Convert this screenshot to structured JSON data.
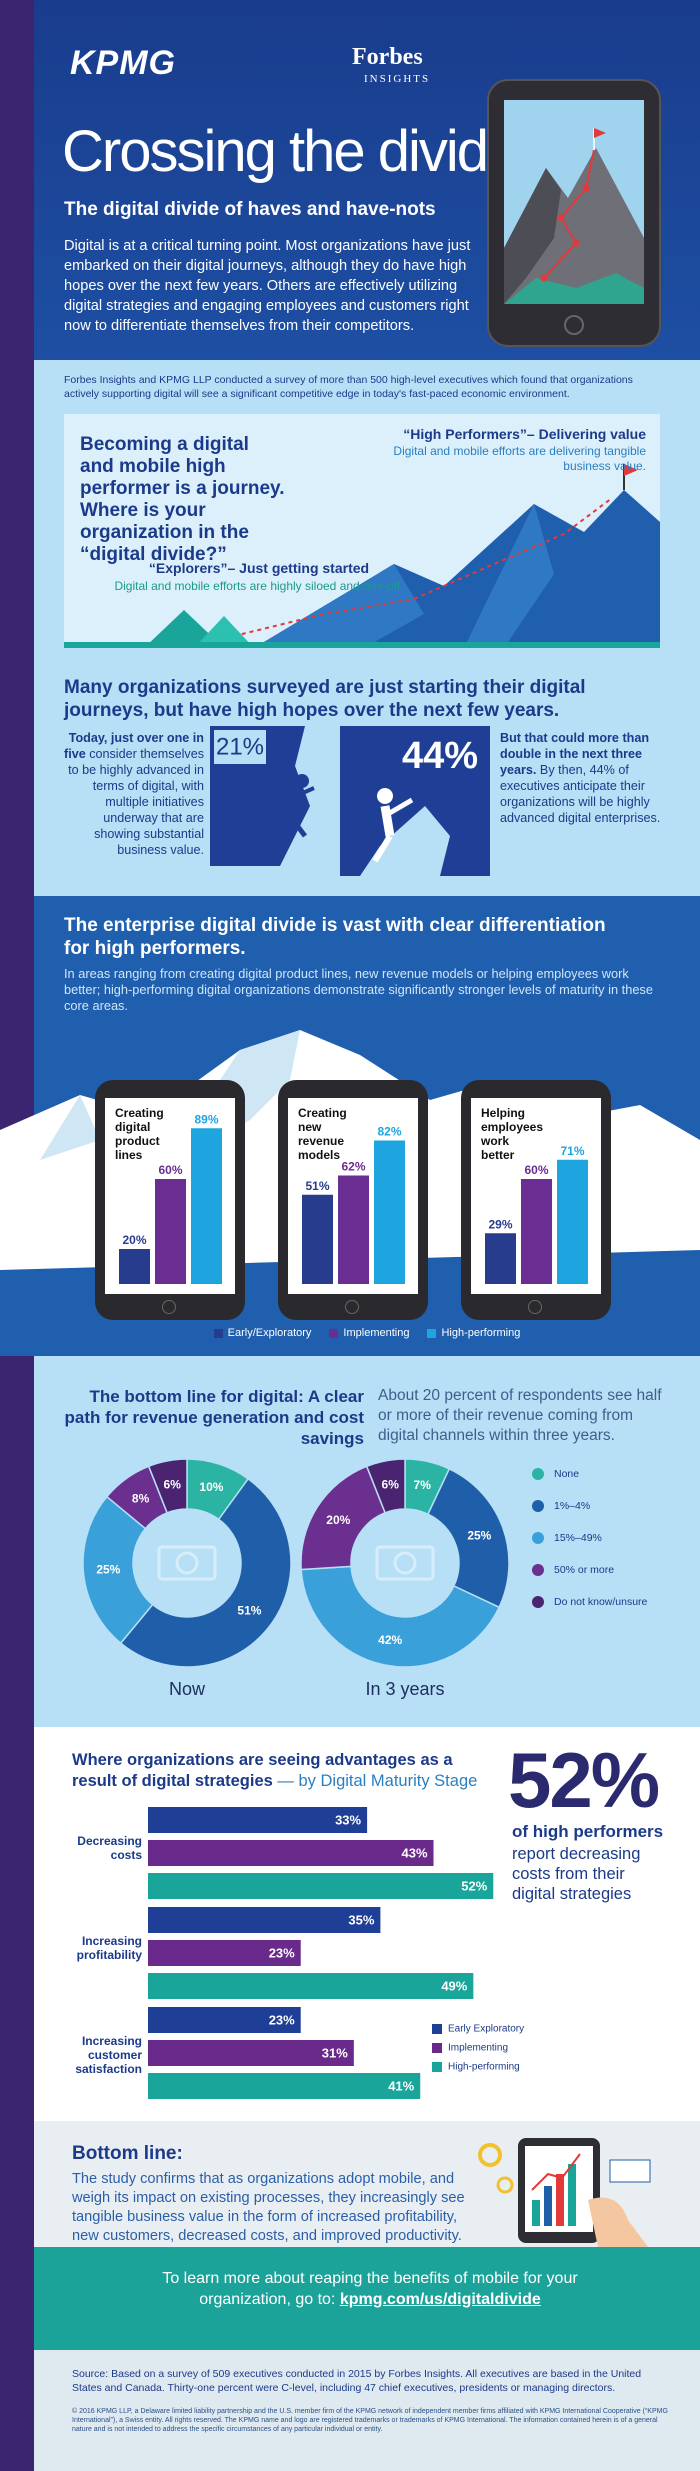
{
  "header": {
    "logo": "KPMG",
    "partner": "Forbes",
    "partner_sub": "INSIGHTS",
    "title": "Crossing the divide",
    "subtitle": "The digital divide of haves and have-nots",
    "intro": "Digital is at a critical turning point. Most organizations have just embarked on their digital journeys, although they do have high hopes over the next few years. Others are effectively utilizing digital strategies and engaging employees and customers right now to differentiate themselves from their competitors."
  },
  "survey_note": "Forbes Insights and KPMG LLP conducted a survey of more than 500 high-level executives which found that organizations actively supporting digital will see a significant competitive edge in today's fast-paced economic environment.",
  "journey": {
    "question": "Becoming a digital and mobile high performer is a journey. Where is your organization in the “digital divide?”",
    "high_title": "“High Performers”– Delivering value",
    "high_text": "Digital and mobile efforts are delivering tangible business value.",
    "explorers_title": "“Explorers”– Just getting started",
    "explorers_text": "Digital and mobile efforts are highly siloed and one-off."
  },
  "hopes": {
    "heading": "Many organizations surveyed are just starting their digital journeys, but have high hopes over the next few years.",
    "today_lead": "Today, just over one in five",
    "today_text": " consider themselves to be highly advanced in terms of digital, with multiple initiatives underway that are showing substantial business value.",
    "today_stat": "21%",
    "future_stat": "44%",
    "future_lead": "But that could more than double in the next three years.",
    "future_text": " By then, 44% of executives anticipate their organizations will be highly advanced digital enterprises."
  },
  "divide": {
    "heading": "The enterprise digital divide is vast with clear differentiation for high performers.",
    "text": "In areas ranging from creating digital product lines, new revenue models or helping employees work better; high-performing digital organizations demonstrate significantly stronger levels of maturity in these core areas."
  },
  "bottom_line_digital": {
    "heading": "The bottom line for digital: A clear path for revenue generation and cost savings",
    "text": "About 20 percent of respondents see half or more of their revenue coming from digital channels within three years."
  },
  "chart_data": [
    {
      "type": "bar",
      "categories": [
        "Creating digital product lines",
        "Creating new revenue models",
        "Helping employees work better"
      ],
      "series": [
        {
          "name": "Early/Exploratory",
          "color": "#283c8e",
          "values": [
            20,
            51,
            29
          ],
          "value_labels": [
            "20%",
            "51%",
            "29%"
          ]
        },
        {
          "name": "Implementing",
          "color": "#6a2d91",
          "values": [
            60,
            62,
            60
          ],
          "value_labels": [
            "60%",
            "62%",
            "60%"
          ]
        },
        {
          "name": "High-performing",
          "color": "#1ea5e0",
          "values": [
            89,
            82,
            71
          ],
          "value_labels": [
            "89%",
            "82%",
            "71%"
          ]
        }
      ]
    },
    {
      "type": "pie",
      "categories": [
        "None",
        "1%–4%",
        "15%–49%",
        "50% or more",
        "Do not know/unsure"
      ],
      "colors": [
        "#2bb3a3",
        "#1f5ea8",
        "#3aa0da",
        "#6b2f8f",
        "#4a2470"
      ],
      "series": [
        {
          "name": "Now",
          "values": [
            10,
            51,
            25,
            8,
            6
          ],
          "value_labels": [
            "10%",
            "51%",
            "25%",
            "8%",
            "6%"
          ]
        },
        {
          "name": "In 3 years",
          "values": [
            7,
            25,
            42,
            20,
            6
          ],
          "value_labels": [
            "7%",
            "25%",
            "42%",
            "20%",
            "6%"
          ]
        }
      ]
    },
    {
      "type": "bar",
      "orientation": "horizontal",
      "title": "Where organizations are seeing advantages as a result of digital strategies",
      "subtitle": "— by Digital Maturity Stage",
      "categories": [
        "Decreasing costs",
        "Increasing profitability",
        "Increasing customer satisfaction"
      ],
      "series": [
        {
          "name": "Early Exploratory",
          "color": "#1f3f96",
          "values": [
            33,
            35,
            23
          ],
          "value_labels": [
            "33%",
            "35%",
            "23%"
          ]
        },
        {
          "name": "Implementing",
          "color": "#6a2a8c",
          "values": [
            43,
            23,
            31
          ],
          "value_labels": [
            "43%",
            "23%",
            "31%"
          ]
        },
        {
          "name": "High-performing",
          "color": "#1aa59a",
          "values": [
            52,
            49,
            41
          ],
          "value_labels": [
            "52%",
            "49%",
            "41%"
          ]
        }
      ]
    }
  ],
  "callout": {
    "stat": "52%",
    "lead": "of high performers",
    "text": "report decreasing costs from their digital strategies"
  },
  "bottom_line": {
    "heading": "Bottom line:",
    "text": "The study confirms that as organizations adopt mobile, and weigh its impact on existing processes, they increasingly see tangible business value in the form of increased profitability, new customers, decreased costs, and improved productivity."
  },
  "learn_more": {
    "text": "To learn more about reaping the benefits of mobile for your organization, go to:",
    "link": "kpmg.com/us/digitaldivide"
  },
  "footer": {
    "source": "Source: Based on a survey of 509 executives conducted in 2015 by Forbes Insights. All executives are based in the United States and Canada. Thirty-one percent were C-level, including 47 chief executives, presidents or managing directors.",
    "copyright": "© 2016 KPMG LLP, a Delaware limited liability partnership and the U.S. member firm of the KPMG network of independent member firms affiliated with KPMG International Cooperative (“KPMG International”), a Swiss entity. All rights reserved. The KPMG name and logo are registered trademarks or trademarks of KPMG International. The information contained herein is of a general nature and is not intended to address the specific circumstances of any particular individual or entity."
  }
}
